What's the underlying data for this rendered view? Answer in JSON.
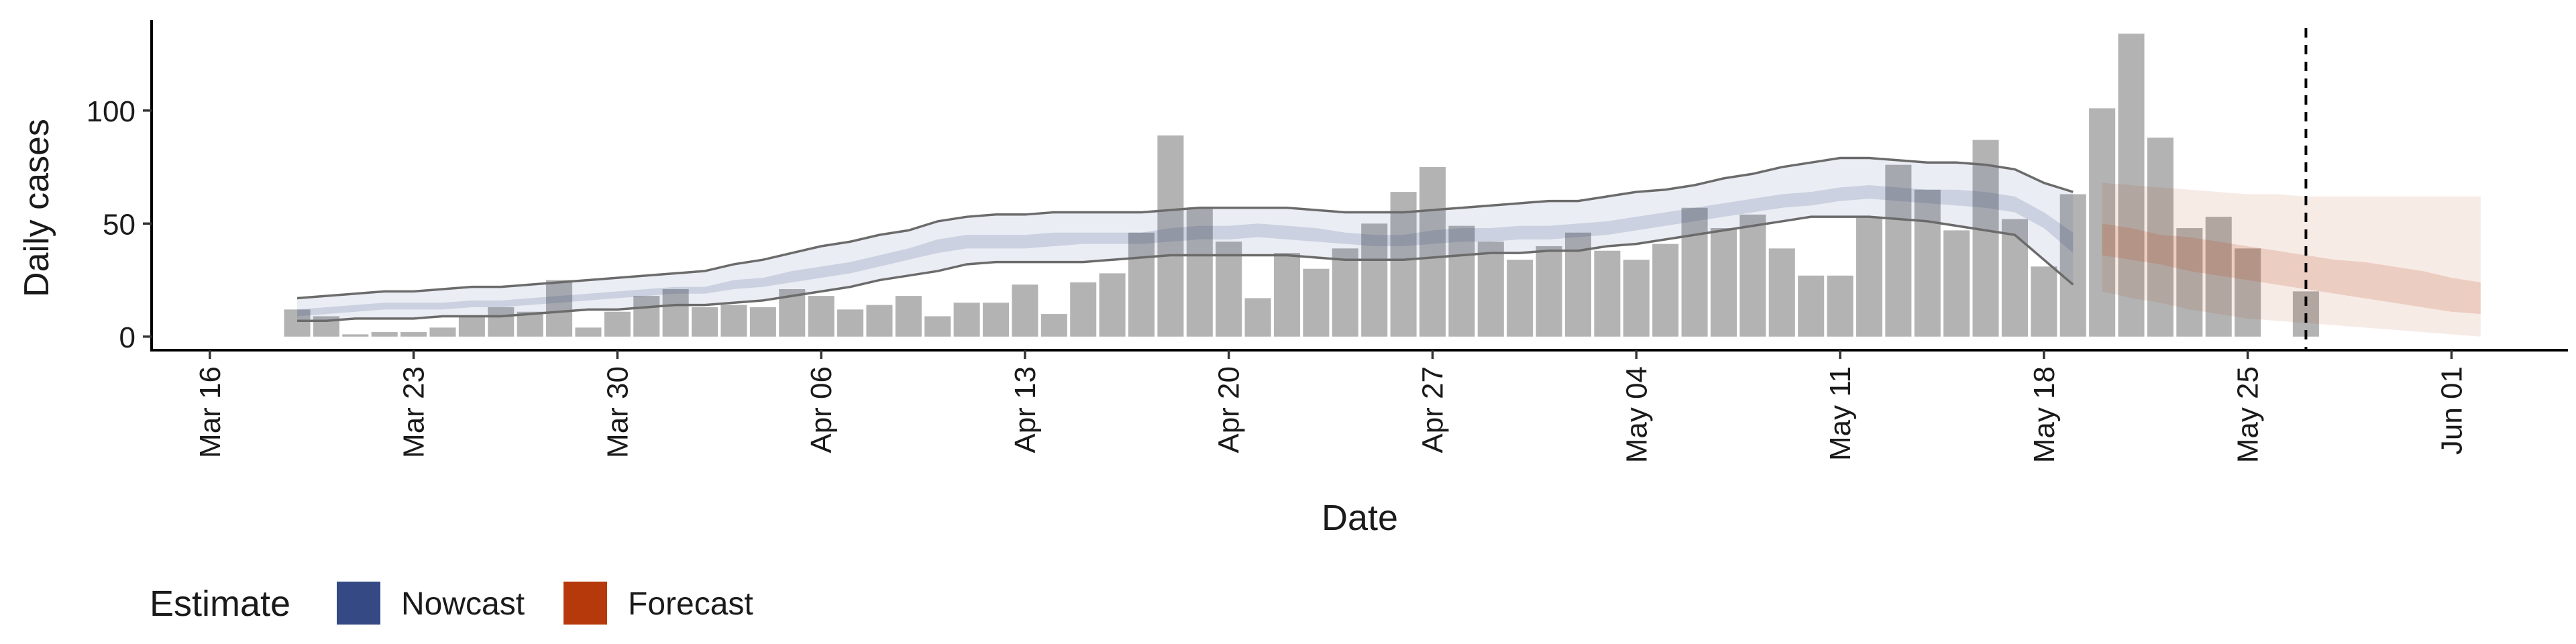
{
  "chart_data": {
    "type": "bar",
    "title": "",
    "xlabel": "Date",
    "ylabel": "Daily cases",
    "y_ticks": [
      "0",
      "50",
      "100"
    ],
    "y_tick_values": [
      0,
      50,
      100
    ],
    "x_ticks": [
      "Mar 16",
      "Mar 23",
      "Mar 30",
      "Apr 06",
      "Apr 13",
      "Apr 20",
      "Apr 27",
      "May 04",
      "May 11",
      "May 18",
      "May 25",
      "Jun 01"
    ],
    "x_tick_dates": [
      "2020-03-16",
      "2020-03-23",
      "2020-03-30",
      "2020-04-06",
      "2020-04-13",
      "2020-04-20",
      "2020-04-27",
      "2020-05-04",
      "2020-05-11",
      "2020-05-18",
      "2020-05-25",
      "2020-06-01"
    ],
    "xlim": [
      "2020-03-14",
      "2020-06-05"
    ],
    "ylim": [
      -6,
      140
    ],
    "grid": false,
    "legend": {
      "title": "Estimate",
      "position": "bottom-left",
      "items": [
        {
          "name": "Nowcast",
          "color": "#354a85"
        },
        {
          "name": "Forecast",
          "color": "#b5390b"
        }
      ]
    },
    "colors": {
      "bars": "#b3b3b3",
      "nowcast_band": "#354a85",
      "forecast_band": "#b5390b",
      "bound_lines": "#6b6b6b"
    },
    "reference_line": {
      "date": "2020-05-27",
      "style": "dashed"
    },
    "observed": {
      "start_date": "2020-03-19",
      "end_date": "2020-05-27",
      "values": [
        12,
        9,
        1,
        2,
        2,
        4,
        9,
        13,
        11,
        25,
        4,
        11,
        18,
        21,
        13,
        14,
        13,
        21,
        18,
        12,
        14,
        18,
        9,
        15,
        15,
        23,
        10,
        24,
        28,
        46,
        89,
        57,
        42,
        17,
        37,
        30,
        39,
        50,
        64,
        75,
        49,
        42,
        34,
        40,
        46,
        38,
        34,
        41,
        57,
        48,
        54,
        39,
        27,
        27,
        53,
        76,
        65,
        47,
        87,
        52,
        31,
        63,
        101,
        134,
        88,
        48,
        53,
        39,
        0,
        20
      ]
    },
    "nowcast": {
      "start_date": "2020-03-19",
      "end_date": "2020-05-19",
      "outer_upper": [
        17,
        18,
        19,
        20,
        20,
        21,
        22,
        22,
        23,
        24,
        25,
        26,
        27,
        28,
        29,
        32,
        34,
        37,
        40,
        42,
        45,
        47,
        51,
        53,
        54,
        54,
        55,
        55,
        55,
        55,
        56,
        57,
        57,
        57,
        57,
        56,
        55,
        55,
        55,
        56,
        57,
        58,
        59,
        60,
        60,
        62,
        64,
        65,
        67,
        70,
        72,
        75,
        77,
        79,
        79,
        78,
        77,
        77,
        76,
        74,
        68,
        64
      ],
      "inner_upper": [
        12,
        13,
        14,
        15,
        15,
        15,
        16,
        16,
        17,
        18,
        19,
        20,
        21,
        22,
        22,
        25,
        26,
        29,
        31,
        33,
        36,
        39,
        43,
        45,
        45,
        45,
        46,
        46,
        46,
        46,
        48,
        49,
        49,
        50,
        49,
        48,
        46,
        45,
        45,
        47,
        48,
        48,
        49,
        49,
        50,
        51,
        53,
        55,
        57,
        59,
        61,
        63,
        64,
        66,
        67,
        66,
        65,
        65,
        64,
        62,
        55,
        46
      ],
      "inner_lower": [
        9,
        10,
        11,
        12,
        12,
        12,
        13,
        13,
        14,
        15,
        16,
        17,
        18,
        19,
        19,
        21,
        22,
        24,
        26,
        28,
        31,
        34,
        37,
        39,
        39,
        39,
        40,
        41,
        41,
        41,
        42,
        43,
        43,
        44,
        43,
        42,
        41,
        40,
        40,
        41,
        42,
        42,
        43,
        43,
        44,
        45,
        47,
        49,
        51,
        53,
        55,
        57,
        58,
        60,
        61,
        60,
        59,
        58,
        57,
        55,
        48,
        37
      ],
      "outer_lower": [
        7,
        7,
        8,
        8,
        8,
        9,
        9,
        9,
        10,
        11,
        12,
        12,
        13,
        14,
        14,
        15,
        16,
        18,
        20,
        22,
        25,
        27,
        29,
        32,
        33,
        33,
        33,
        33,
        34,
        35,
        36,
        36,
        36,
        36,
        36,
        35,
        34,
        34,
        34,
        35,
        36,
        37,
        37,
        38,
        38,
        40,
        41,
        43,
        45,
        47,
        49,
        51,
        53,
        53,
        53,
        52,
        51,
        49,
        47,
        45,
        34,
        23
      ]
    },
    "forecast": {
      "start_date": "2020-05-20",
      "end_date": "2020-06-02",
      "outer_upper": [
        68,
        67,
        66,
        65,
        64,
        63,
        63,
        62,
        62,
        62,
        62,
        62,
        62,
        62
      ],
      "inner_upper": [
        50,
        48,
        45,
        44,
        42,
        40,
        38,
        36,
        34,
        33,
        31,
        29,
        26,
        24
      ],
      "inner_lower": [
        36,
        34,
        32,
        29,
        27,
        25,
        23,
        21,
        19,
        17,
        15,
        13,
        11,
        10
      ],
      "outer_lower": [
        20,
        17,
        15,
        12,
        10,
        8,
        7,
        6,
        5,
        4,
        3,
        2,
        1,
        0
      ]
    }
  }
}
